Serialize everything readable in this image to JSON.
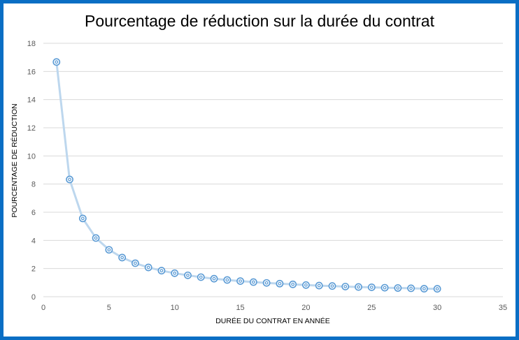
{
  "chart_data": {
    "type": "scatter",
    "title": "Pourcentage de réduction sur la durée du contrat",
    "xlabel": "DURÉE DU CONTRAT EN ANNÉE",
    "ylabel": "POURCENTAGE DE RÉDUCTION",
    "xlim": [
      0,
      35
    ],
    "ylim": [
      0,
      18
    ],
    "x_ticks": [
      "0",
      "5",
      "10",
      "15",
      "20",
      "25",
      "30",
      "35"
    ],
    "y_ticks": [
      "0",
      "2",
      "4",
      "6",
      "8",
      "10",
      "12",
      "14",
      "16",
      "18"
    ],
    "grid": "horizontal",
    "legend": "none",
    "series": [
      {
        "x": [
          1,
          2,
          3,
          4,
          5,
          6,
          7,
          8,
          9,
          10,
          11,
          12,
          13,
          14,
          15,
          16,
          17,
          18,
          19,
          20,
          21,
          22,
          23,
          24,
          25,
          26,
          27,
          28,
          29,
          30
        ],
        "y": [
          16.67,
          8.33,
          5.56,
          4.17,
          3.33,
          2.78,
          2.38,
          2.08,
          1.85,
          1.67,
          1.52,
          1.39,
          1.28,
          1.19,
          1.11,
          1.04,
          0.98,
          0.93,
          0.88,
          0.83,
          0.79,
          0.76,
          0.72,
          0.69,
          0.67,
          0.64,
          0.62,
          0.6,
          0.57,
          0.56
        ]
      }
    ],
    "colors": {
      "frame": "#0a6ec4",
      "line": "#bdd7ee",
      "marker": "#5b9bd5",
      "grid": "#d9d9d9"
    }
  }
}
